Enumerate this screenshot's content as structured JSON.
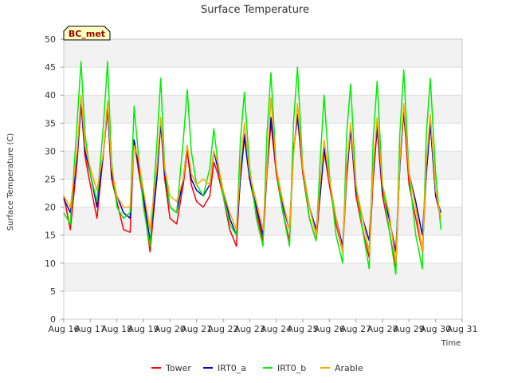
{
  "chart_data": {
    "type": "line",
    "title": "Surface Temperature",
    "xlabel": "Time",
    "ylabel": "Surface Temperature (C)",
    "badge": "BC_met",
    "xlim": [
      16,
      31
    ],
    "ylim": [
      0,
      50
    ],
    "x_ticks": [
      {
        "value": 16,
        "label": "Aug 16"
      },
      {
        "value": 17,
        "label": "Aug 17"
      },
      {
        "value": 18,
        "label": "Aug 18"
      },
      {
        "value": 19,
        "label": "Aug 19"
      },
      {
        "value": 20,
        "label": "Aug 20"
      },
      {
        "value": 21,
        "label": "Aug 21"
      },
      {
        "value": 22,
        "label": "Aug 22"
      },
      {
        "value": 23,
        "label": "Aug 23"
      },
      {
        "value": 24,
        "label": "Aug 24"
      },
      {
        "value": 25,
        "label": "Aug 25"
      },
      {
        "value": 26,
        "label": "Aug 26"
      },
      {
        "value": 27,
        "label": "Aug 27"
      },
      {
        "value": 28,
        "label": "Aug 28"
      },
      {
        "value": 29,
        "label": "Aug 29"
      },
      {
        "value": 30,
        "label": "Aug 30"
      },
      {
        "value": 31,
        "label": "Aug 31"
      }
    ],
    "y_ticks": [
      0,
      5,
      10,
      15,
      20,
      25,
      30,
      35,
      40,
      45,
      50
    ],
    "legend_position": "bottom",
    "series": [
      {
        "name": "Tower",
        "color": "#ff0000",
        "x": [
          16.0,
          16.25,
          16.5,
          16.65,
          16.8,
          17.0,
          17.25,
          17.5,
          17.65,
          17.8,
          18.0,
          18.25,
          18.5,
          18.65,
          18.8,
          19.0,
          19.25,
          19.5,
          19.65,
          19.8,
          20.0,
          20.25,
          20.5,
          20.65,
          20.8,
          21.0,
          21.25,
          21.5,
          21.65,
          21.8,
          22.0,
          22.25,
          22.5,
          22.65,
          22.8,
          23.0,
          23.25,
          23.5,
          23.65,
          23.8,
          24.0,
          24.25,
          24.5,
          24.65,
          24.8,
          25.0,
          25.25,
          25.5,
          25.65,
          25.8,
          26.0,
          26.25,
          26.5,
          26.65,
          26.8,
          27.0,
          27.25,
          27.5,
          27.65,
          27.8,
          28.0,
          28.25,
          28.5,
          28.65,
          28.8,
          29.0,
          29.25,
          29.5,
          29.65,
          29.8,
          30.0,
          30.2
        ],
        "y": [
          22,
          16,
          28,
          38.5,
          29,
          24,
          18,
          30,
          37.5,
          25,
          21,
          16,
          15.5,
          32,
          27,
          21,
          12,
          25,
          35,
          25,
          18,
          17,
          24,
          30,
          24,
          21,
          20,
          22,
          28,
          26,
          22,
          16,
          13,
          26,
          33,
          25,
          19,
          14,
          26,
          35,
          26,
          19,
          14,
          30,
          36,
          26,
          18,
          14,
          22,
          30,
          24,
          17,
          12,
          25,
          34,
          22,
          16,
          11,
          25,
          34,
          22,
          16,
          9,
          28,
          37,
          24,
          18,
          12,
          26,
          35,
          22,
          18
        ]
      },
      {
        "name": "IRT0_a",
        "color": "#0000cc",
        "x": [
          16.0,
          16.25,
          16.5,
          16.65,
          16.8,
          17.0,
          17.25,
          17.5,
          17.65,
          17.8,
          18.0,
          18.25,
          18.5,
          18.65,
          18.8,
          19.0,
          19.25,
          19.5,
          19.65,
          19.8,
          20.0,
          20.25,
          20.5,
          20.65,
          20.8,
          21.0,
          21.25,
          21.5,
          21.65,
          21.8,
          22.0,
          22.25,
          22.5,
          22.65,
          22.8,
          23.0,
          23.25,
          23.5,
          23.65,
          23.8,
          24.0,
          24.25,
          24.5,
          24.65,
          24.8,
          25.0,
          25.25,
          25.5,
          25.65,
          25.8,
          26.0,
          26.25,
          26.5,
          26.65,
          26.8,
          27.0,
          27.25,
          27.5,
          27.65,
          27.8,
          28.0,
          28.25,
          28.5,
          28.65,
          28.8,
          29.0,
          29.25,
          29.5,
          29.65,
          29.8,
          30.0,
          30.2
        ],
        "y": [
          21.5,
          19,
          29,
          39,
          30,
          26,
          20,
          30,
          38,
          26,
          22,
          19,
          18,
          32,
          28,
          22,
          14,
          25,
          35,
          26,
          20,
          19,
          25,
          31,
          25,
          23,
          22,
          24,
          30,
          27,
          23,
          18,
          15,
          25,
          32.5,
          25,
          20,
          15,
          27,
          36,
          27,
          20,
          16,
          30,
          36.5,
          27,
          20,
          16,
          22,
          30.5,
          25,
          18,
          13,
          26,
          34,
          23,
          18,
          14,
          26,
          35,
          23,
          18,
          12,
          27,
          37.5,
          26,
          21,
          15,
          26,
          35,
          22,
          19
        ]
      },
      {
        "name": "IRT0_b",
        "color": "#00ee00",
        "x": [
          16.0,
          16.25,
          16.5,
          16.65,
          16.8,
          17.0,
          17.25,
          17.5,
          17.65,
          17.8,
          18.0,
          18.25,
          18.5,
          18.65,
          18.8,
          19.0,
          19.25,
          19.5,
          19.65,
          19.8,
          20.0,
          20.25,
          20.5,
          20.65,
          20.8,
          21.0,
          21.25,
          21.5,
          21.65,
          21.8,
          22.0,
          22.25,
          22.5,
          22.65,
          22.8,
          23.0,
          23.25,
          23.5,
          23.65,
          23.8,
          24.0,
          24.25,
          24.5,
          24.65,
          24.8,
          25.0,
          25.25,
          25.5,
          25.65,
          25.8,
          26.0,
          26.25,
          26.5,
          26.65,
          26.8,
          27.0,
          27.25,
          27.5,
          27.65,
          27.8,
          28.0,
          28.25,
          28.5,
          28.65,
          28.8,
          29.0,
          29.25,
          29.5,
          29.65,
          29.8,
          30.0,
          30.2
        ],
        "y": [
          19,
          17,
          35,
          46,
          33,
          26,
          21,
          35,
          46,
          28,
          20,
          18,
          19,
          38,
          30,
          20,
          13,
          31,
          43,
          27,
          20,
          19,
          32,
          41,
          30,
          24,
          22,
          27,
          34,
          28,
          22,
          17,
          15,
          32,
          40.5,
          27,
          18,
          13,
          33,
          44,
          27,
          19,
          13,
          35,
          45,
          27,
          18,
          14,
          28,
          40,
          26,
          15,
          10,
          33,
          42,
          24,
          16,
          9,
          32,
          42.5,
          24,
          16,
          8,
          33,
          44.5,
          26,
          15,
          9,
          33,
          43,
          26,
          16
        ]
      },
      {
        "name": "Arable",
        "color": "#ffa500",
        "x": [
          16.0,
          16.25,
          16.5,
          16.65,
          16.8,
          17.0,
          17.25,
          17.5,
          17.65,
          17.8,
          18.0,
          18.25,
          18.5,
          18.65,
          18.8,
          19.0,
          19.25,
          19.5,
          19.65,
          19.8,
          20.0,
          20.25,
          20.5,
          20.65,
          20.8,
          21.0,
          21.25,
          21.5,
          21.65,
          21.8,
          22.0,
          22.25,
          22.5,
          22.65,
          22.8,
          23.0,
          23.25,
          23.5,
          23.65,
          23.8,
          24.0,
          24.25,
          24.5,
          24.65,
          24.8,
          25.0,
          25.25,
          25.5,
          25.65,
          25.8,
          26.0,
          26.25,
          26.5,
          26.65,
          26.8,
          27.0,
          27.25,
          27.5,
          27.65,
          27.8,
          28.0,
          28.25,
          28.5,
          28.65,
          28.8,
          29.0,
          29.25,
          29.5,
          29.65,
          29.8,
          30.0,
          30.2
        ],
        "y": [
          22,
          20,
          30,
          40,
          31,
          27,
          23,
          30,
          39,
          27,
          22,
          20,
          20,
          31,
          29,
          23,
          16,
          27,
          36,
          27,
          22,
          21,
          25,
          31,
          26,
          24,
          25,
          24,
          30,
          28,
          23,
          19,
          16,
          27,
          35,
          26,
          21,
          16,
          27,
          39.5,
          27,
          21,
          16,
          29,
          38.5,
          27,
          20,
          15,
          24,
          32,
          25,
          18,
          12,
          27,
          35,
          24,
          18,
          12,
          27,
          36,
          24,
          19,
          10,
          28,
          38.5,
          26,
          20,
          12,
          28,
          36.5,
          23,
          18
        ]
      }
    ]
  }
}
